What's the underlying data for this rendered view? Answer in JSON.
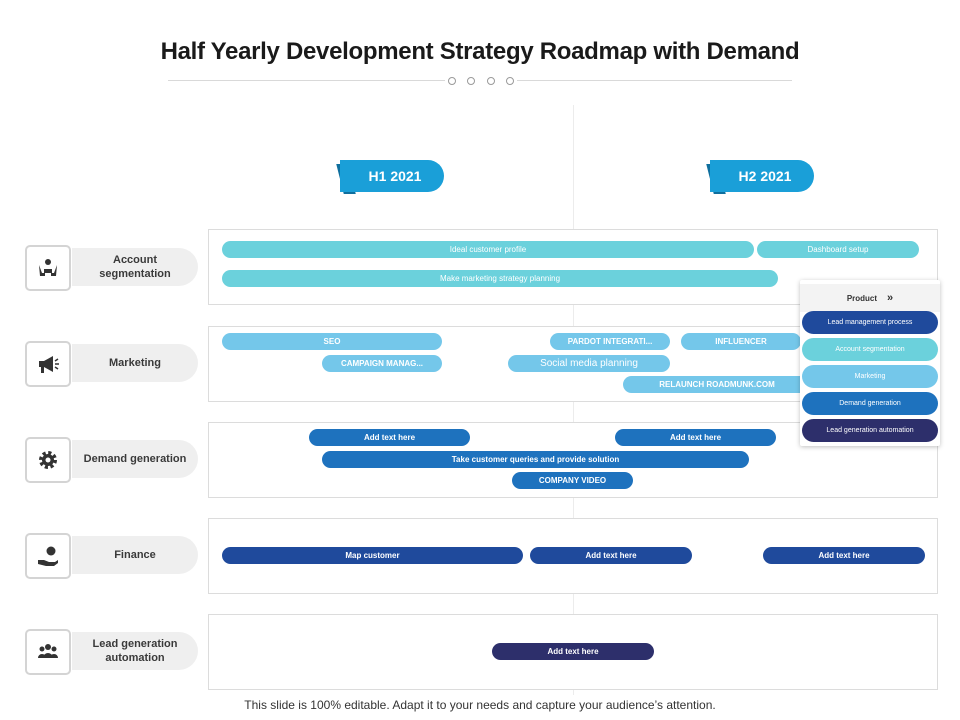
{
  "title": "Half Yearly Development Strategy Roadmap with Demand",
  "periods": [
    "H1 2021",
    "H2 2021"
  ],
  "rows": [
    {
      "label": "Account segmentation",
      "icon": "people-hands-icon"
    },
    {
      "label": "Marketing",
      "icon": "megaphone-icon"
    },
    {
      "label": "Demand generation",
      "icon": "gear-icon"
    },
    {
      "label": "Finance",
      "icon": "money-hand-icon"
    },
    {
      "label": "Lead generation automation",
      "icon": "group-icon"
    }
  ],
  "bars": {
    "account": [
      "Ideal customer profile",
      "Dashboard setup",
      "Make marketing strategy planning"
    ],
    "marketing": [
      "SEO",
      "PARDOT INTEGRATI...",
      "INFLUENCER",
      "CAMPAIGN MANAG...",
      "Social media planning",
      "RELAUNCH ROADMUNK.COM"
    ],
    "demand": [
      "Add text here",
      "Add text here",
      "Take customer queries and provide solution",
      "COMPANY VIDEO"
    ],
    "finance": [
      "Map customer",
      "Add text here",
      "Add text here"
    ],
    "lead": [
      "Add text here"
    ]
  },
  "legend": {
    "title": "Product",
    "items": [
      "Lead management process",
      "Account segmentation",
      "Marketing",
      "Demand generation",
      "Lead generation automation"
    ]
  },
  "colors": {
    "accent": "#1a9fd8",
    "teal": "#6bd1dc",
    "sky": "#74c7ea",
    "mid": "#1e72be",
    "navy": "#1f4a9c",
    "deep": "#2d2f6b"
  },
  "footer": "This slide is 100% editable. Adapt it to your needs and capture your audience’s attention."
}
